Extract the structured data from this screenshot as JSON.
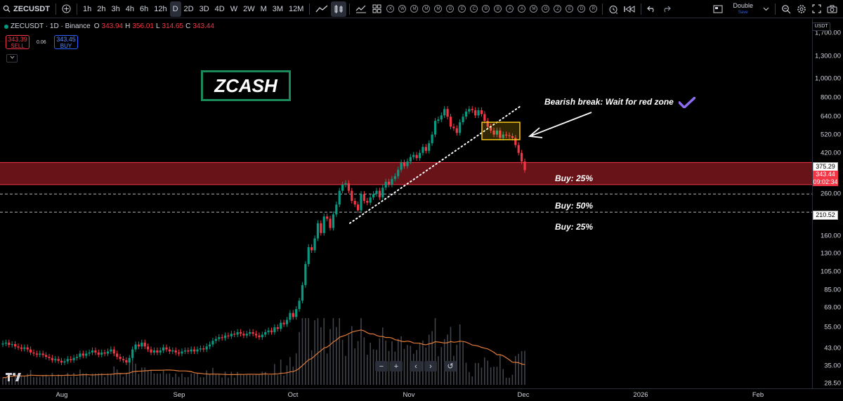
{
  "toolbar": {
    "symbol": "ZECUSDT",
    "intervals": [
      "1h",
      "2h",
      "3h",
      "4h",
      "6h",
      "12h",
      "D",
      "2D",
      "3D",
      "4D",
      "W",
      "2W",
      "M",
      "3M",
      "12M"
    ],
    "active_interval": "D",
    "indicator_letters": [
      "X",
      "W",
      "M",
      "M",
      "M",
      "G",
      "E",
      "C",
      "B",
      "B",
      "A",
      "A",
      "M",
      "O",
      "Z",
      "E",
      "D",
      "R"
    ],
    "layout_label": "Double",
    "layout_sub": "Save"
  },
  "legend": {
    "title": "ZECUSDT · 1D · Binance",
    "open_label": "O",
    "open": "343.94",
    "high_label": "H",
    "high": "356.01",
    "low_label": "L",
    "low": "314.65",
    "close_label": "C",
    "close": "343.44",
    "sell_price": "343.39",
    "sell_label": "SELL",
    "spread": "0.06",
    "buy_price": "343.45",
    "buy_label": "BUY"
  },
  "chart_title": "ZCASH",
  "annotations": {
    "bearish": "Bearish break: Wait for red zone",
    "buy1": "Buy: 25%",
    "buy2": "Buy: 50%",
    "buy3": "Buy: 25%"
  },
  "price_axis": {
    "currency": "USDT",
    "ticks": [
      "1,700.00",
      "1,300.00",
      "1,000.00",
      "800.00",
      "640.00",
      "520.00",
      "420.00",
      "260.00",
      "160.00",
      "130.00",
      "105.00",
      "85.00",
      "69.00",
      "55.00",
      "43.00",
      "35.00",
      "28.50"
    ],
    "label_zone_top": "375.29",
    "label_price": "343.44",
    "label_countdown": "09:02:34",
    "label_level": "210.52"
  },
  "time_axis": {
    "labels": [
      "Aug",
      "Sep",
      "Oct",
      "Nov",
      "Dec",
      "2026",
      "Feb"
    ]
  },
  "colors": {
    "up": "#089981",
    "down": "#f23645",
    "zone": "#8b1a1f",
    "title_border": "#1b8a5a",
    "highlight": "#f5c518"
  },
  "chart_data": {
    "type": "candlestick",
    "scale": "log",
    "ylim": [
      27,
      2000
    ],
    "zone": [
      290,
      375.29
    ],
    "levels": [
      260,
      210.52
    ],
    "close": [
      45.5,
      46.0,
      44.8,
      45.2,
      44.0,
      43.5,
      42.8,
      43.5,
      42.5,
      41.0,
      40.5,
      40.0,
      40.5,
      39.8,
      39.0,
      38.5,
      37.5,
      38.0,
      37.2,
      36.5,
      37.0,
      38.0,
      37.5,
      38.5,
      39.0,
      40.5,
      39.5,
      40.5,
      41.0,
      42.0,
      41.0,
      40.0,
      41.0,
      40.5,
      41.5,
      42.5,
      40.5,
      39.0,
      38.0,
      37.5,
      36.5,
      38.5,
      42.5,
      45.0,
      44.0,
      46.0,
      44.0,
      42.5,
      41.0,
      42.0,
      41.0,
      42.0,
      43.5,
      42.5,
      41.5,
      42.0,
      41.0,
      40.5,
      41.5,
      42.0,
      41.5,
      42.5,
      41.5,
      42.5,
      43.0,
      42.5,
      44.0,
      45.0,
      47.0,
      48.0,
      49.0,
      48.5,
      50.0,
      49.5,
      51.0,
      50.5,
      52.0,
      51.0,
      50.0,
      51.0,
      52.0,
      51.0,
      50.0,
      49.0,
      50.5,
      52.0,
      53.0,
      52.0,
      55.0,
      54.0,
      58.0,
      57.0,
      60.0,
      65.0,
      62.0,
      68.0,
      75.0,
      90.0,
      115.0,
      140.0,
      135.0,
      155.0,
      185.0,
      165.0,
      200.0,
      195.0,
      175.0,
      205.0,
      230.0,
      270.0,
      290.0,
      295.0,
      270.0,
      240.0,
      230.0,
      215.0,
      260.0,
      240.0,
      235.0,
      250.0,
      260.0,
      270.0,
      250.0,
      280.0,
      300.0,
      290.0,
      310.0,
      320.0,
      345.0,
      375.0,
      360.0,
      380.0,
      400.0,
      410.0,
      395.0,
      420.0,
      450.0,
      430.0,
      470.0,
      520.0,
      610.0,
      620.0,
      650.0,
      700.0,
      640.0,
      570.0,
      560.0,
      530.0,
      600.0,
      640.0,
      680.0,
      700.0,
      690.0,
      650.0,
      690.0,
      660.0,
      610.0,
      570.0,
      545.0,
      520.0,
      545.0,
      500.0,
      520.0,
      515.0,
      510.0,
      500.0,
      460.0,
      420.0,
      380.0,
      343.44
    ]
  }
}
